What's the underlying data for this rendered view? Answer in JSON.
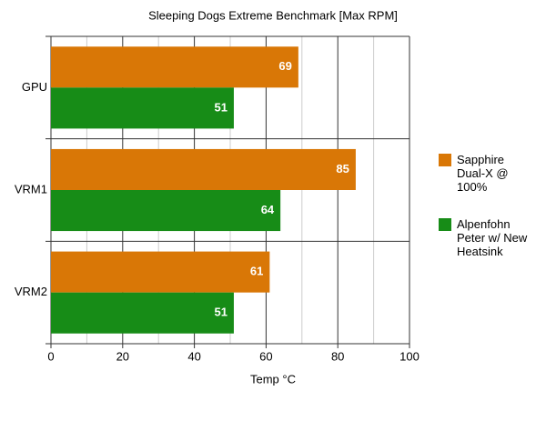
{
  "chart_data": {
    "type": "hbar",
    "title": "Sleeping Dogs Extreme Benchmark [Max RPM]",
    "xlabel": "Temp °C",
    "categories": [
      "GPU",
      "VRM1",
      "VRM2"
    ],
    "series": [
      {
        "name": "Sapphire Dual-X @ 100%",
        "color": "#d97706",
        "values": [
          69,
          85,
          61
        ]
      },
      {
        "name": "Alpenfohn Peter w/ New Heatsink",
        "color": "#178c17",
        "values": [
          51,
          64,
          51
        ]
      }
    ],
    "xlim": [
      0,
      100
    ],
    "xticks": [
      0,
      20,
      40,
      60,
      80,
      100
    ],
    "minor_xticks": [
      10,
      30,
      50,
      70,
      90
    ],
    "grid": true,
    "legend": "right"
  }
}
